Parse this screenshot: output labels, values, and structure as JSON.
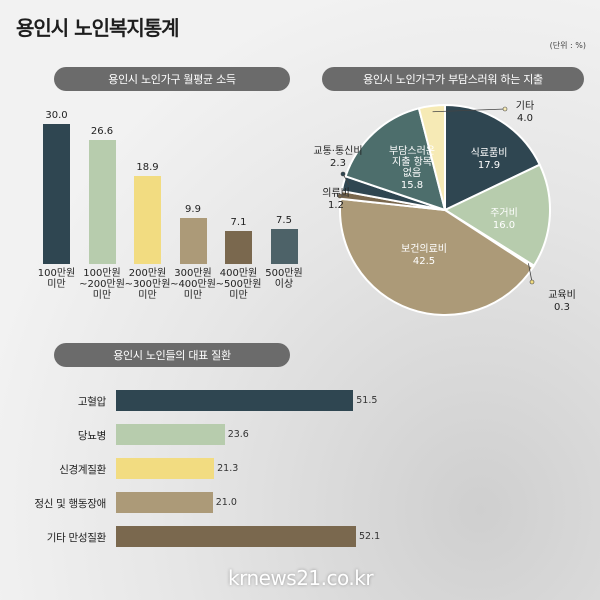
{
  "title": "용인시 노인복지통계",
  "unit": "(단위 : %)",
  "watermark": "krnews21.co.kr",
  "chart_data": [
    {
      "type": "bar",
      "title": "용인시 노인가구 월평균 소득",
      "categories": [
        "100만원\n미만",
        "100만원\n~200만원\n미만",
        "200만원\n~300만원\n미만",
        "300만원\n~400만원\n미만",
        "400만원\n~500만원\n미만",
        "500만원\n이상"
      ],
      "values": [
        30.0,
        26.6,
        18.9,
        9.9,
        7.1,
        7.5
      ],
      "value_labels": [
        "30.0",
        "26.6",
        "18.9",
        "9.9",
        "7.1",
        "7.5"
      ],
      "colors": [
        "#2f4651",
        "#b7ccad",
        "#f2dc81",
        "#ac9a78",
        "#7a684e",
        "#4d6268"
      ],
      "ylim": [
        0,
        30
      ]
    },
    {
      "type": "pie",
      "title": "용인시 노인가구가 부담스러워 하는 지출",
      "slices": [
        {
          "label": "식료품비",
          "value": 17.9,
          "value_label": "17.9",
          "color": "#2f4651"
        },
        {
          "label": "주거비",
          "value": 16.0,
          "value_label": "16.0",
          "color": "#b7ccad"
        },
        {
          "label": "교육비",
          "value": 0.3,
          "value_label": "0.3",
          "color": "#f2dc81"
        },
        {
          "label": "보건의료비",
          "value": 42.5,
          "value_label": "42.5",
          "color": "#ac9a78"
        },
        {
          "label": "의류비",
          "value": 1.2,
          "value_label": "1.2",
          "color": "#7a684e"
        },
        {
          "label": "교통·통신비",
          "value": 2.3,
          "value_label": "2.3",
          "color": "#2f4651"
        },
        {
          "label": "부담스러운\n지출 항목\n없음",
          "value": 15.8,
          "value_label": "15.8",
          "color": "#4d6e6c"
        },
        {
          "label": "기타",
          "value": 4.0,
          "value_label": "4.0",
          "color": "#f6eab5"
        }
      ]
    },
    {
      "type": "bar",
      "orientation": "horizontal",
      "title": "용인시 노인들의 대표 질환",
      "categories": [
        "고혈압",
        "당뇨병",
        "신경계질환",
        "정신 및 행동장애",
        "기타 만성질환"
      ],
      "values": [
        51.5,
        23.6,
        21.3,
        21.0,
        52.1
      ],
      "value_labels": [
        "51.5",
        "23.6",
        "21.3",
        "21.0",
        "52.1"
      ],
      "colors": [
        "#2f4651",
        "#b7ccad",
        "#f2dc81",
        "#ac9a78",
        "#7a684e"
      ]
    }
  ]
}
